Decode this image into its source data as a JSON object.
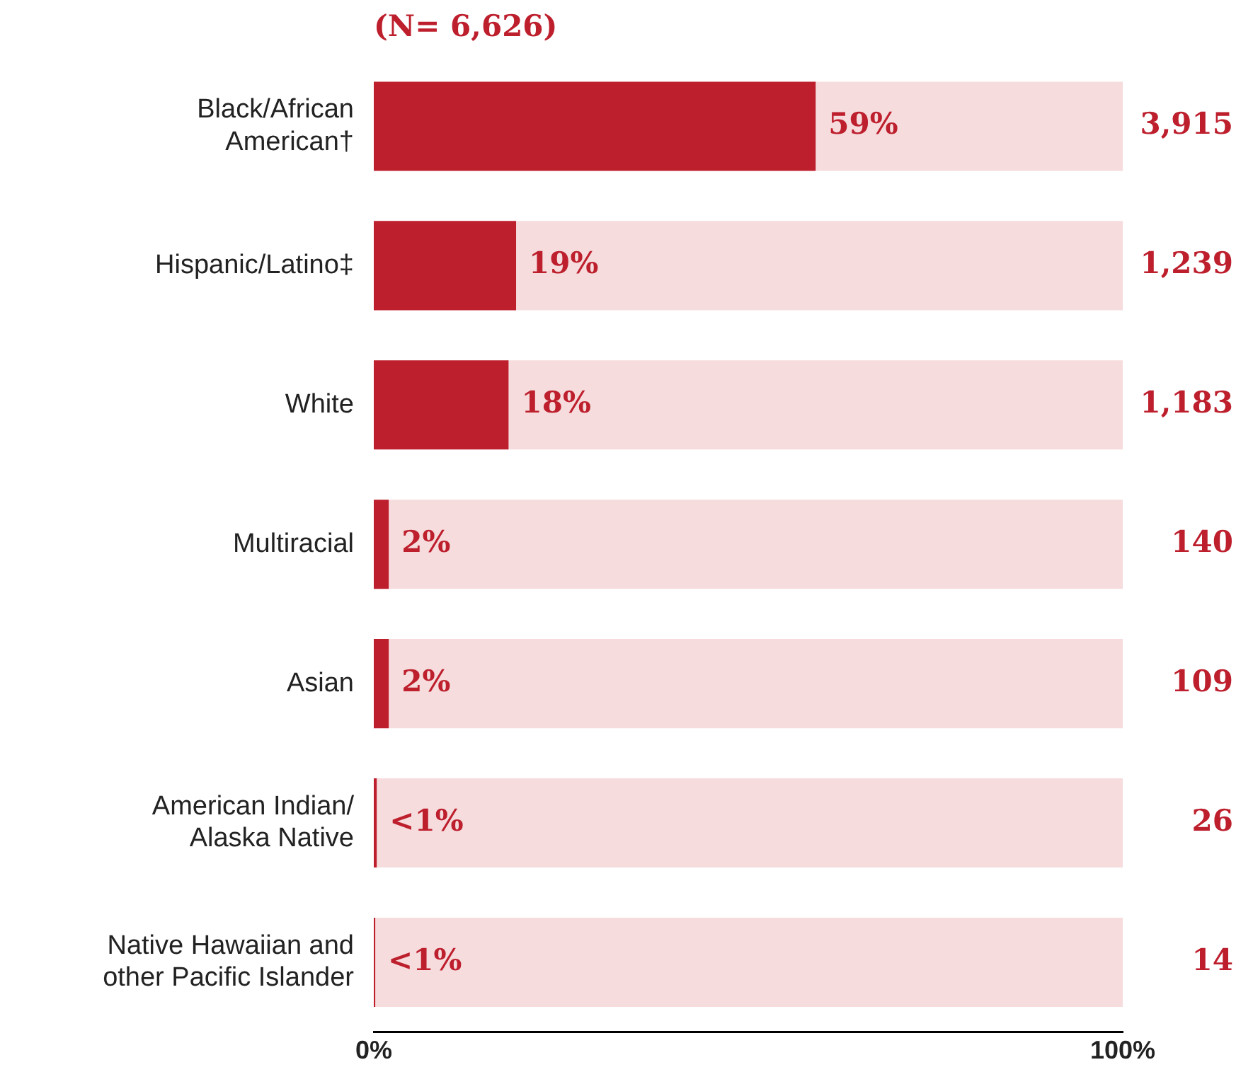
{
  "chart_data": {
    "type": "bar",
    "orientation": "horizontal",
    "stacked": true,
    "title": "(N= 6,626)",
    "categories": [
      "Black/African American†",
      "Hispanic/Latino‡",
      "White",
      "Multiracial",
      "Asian",
      "American Indian/ Alaska Native",
      "Native Hawaiian and other Pacific Islander"
    ],
    "series": [
      {
        "color": "#bd1f2d",
        "values": [
          59,
          19,
          18,
          2,
          2,
          0.4,
          0.2
        ],
        "value_labels": [
          "59%",
          "19%",
          "18%",
          "2%",
          "2%",
          "<1%",
          "<1%"
        ]
      },
      {
        "color": "#f6dcdd",
        "values": [
          41,
          81,
          82,
          98,
          98,
          99.6,
          99.8
        ]
      }
    ],
    "xlim": [
      0,
      100
    ],
    "xticks": [
      {
        "value": 0,
        "label": "0%"
      },
      {
        "value": 100,
        "label": "100%"
      }
    ],
    "annotations": [
      "3,915",
      "1,239",
      "1,183",
      "140",
      "109",
      "26",
      "14"
    ],
    "grid": false,
    "legend": false
  }
}
